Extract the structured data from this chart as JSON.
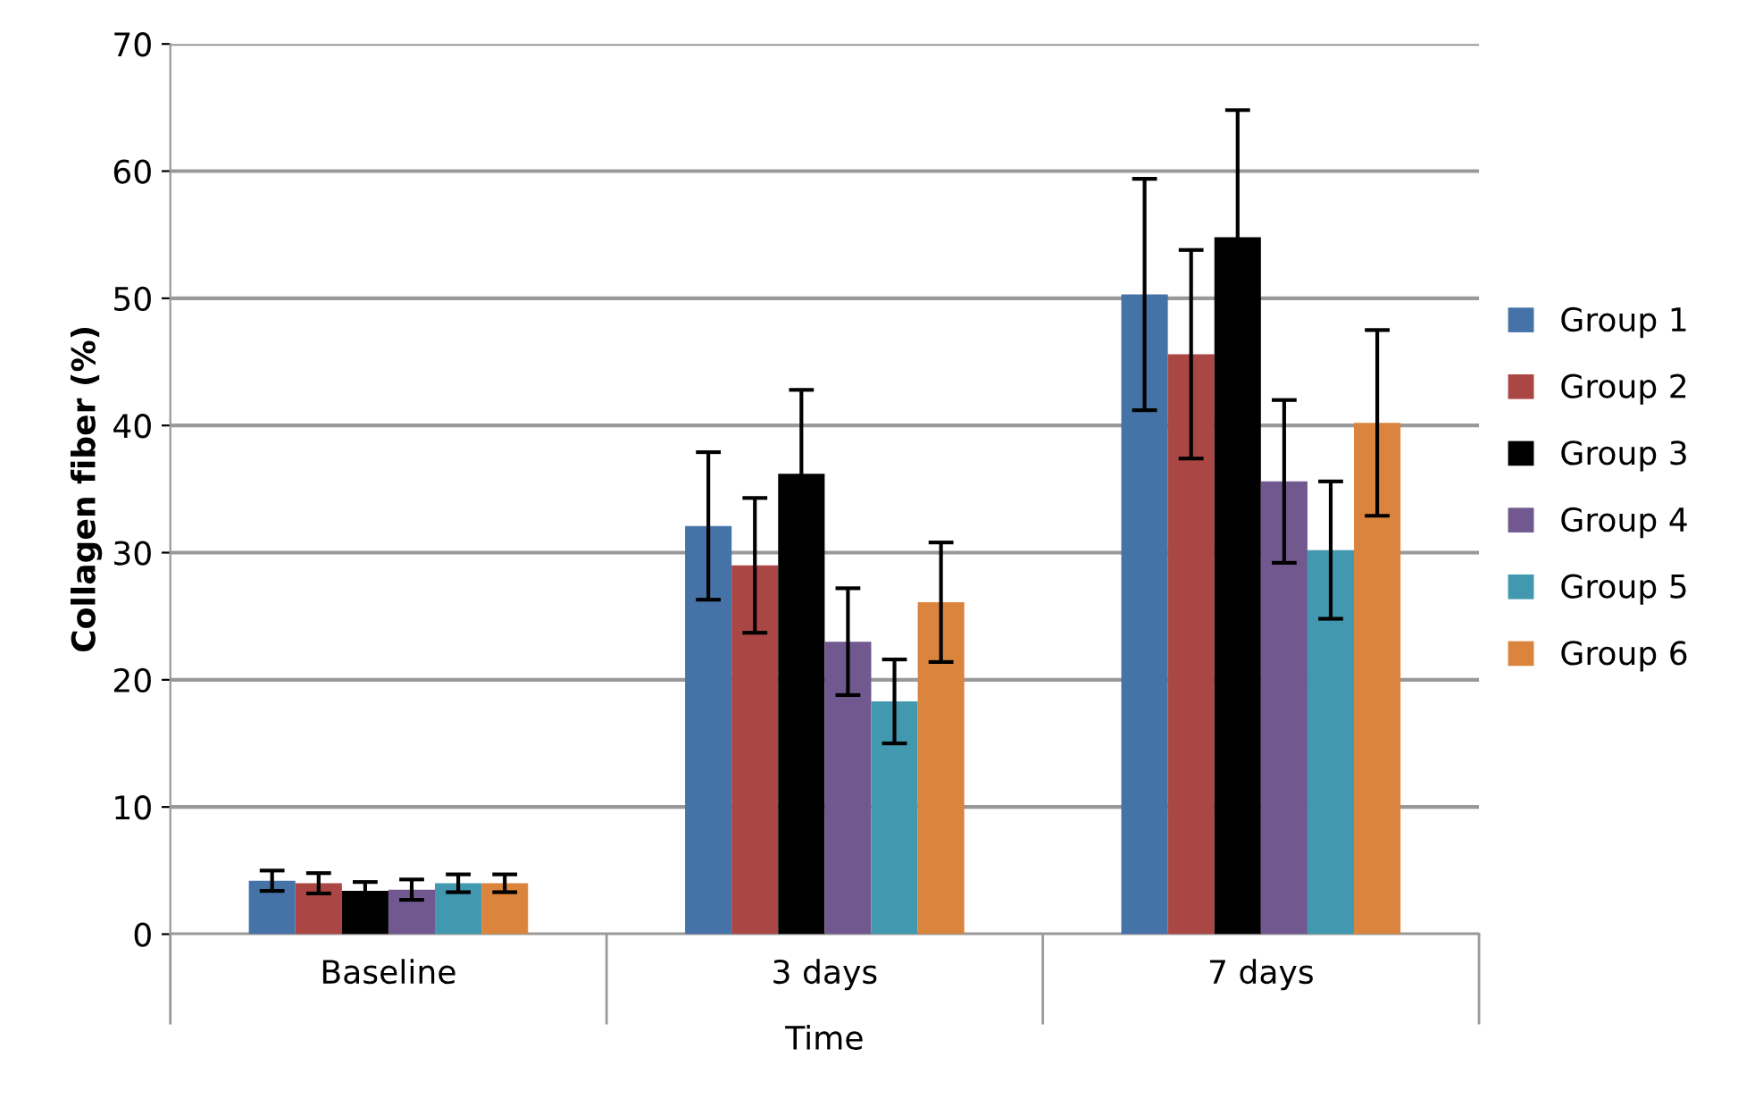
{
  "chart_data": {
    "type": "bar",
    "xlabel": "Time",
    "ylabel": "Collagen fiber (%)",
    "categories": [
      "Baseline",
      "3 days",
      "7 days"
    ],
    "series": [
      {
        "name": "Group 1",
        "color": "#4572a7",
        "values": [
          4.2,
          32.1,
          50.3
        ],
        "errors": [
          0.8,
          5.8,
          9.1
        ]
      },
      {
        "name": "Group 2",
        "color": "#aa4643",
        "values": [
          4.0,
          29.0,
          45.6
        ],
        "errors": [
          0.8,
          5.3,
          8.2
        ]
      },
      {
        "name": "Group 3",
        "color": "#000000",
        "values": [
          3.4,
          36.2,
          54.8
        ],
        "errors": [
          0.7,
          6.6,
          10.0
        ]
      },
      {
        "name": "Group 4",
        "color": "#71588f",
        "values": [
          3.5,
          23.0,
          35.6
        ],
        "errors": [
          0.8,
          4.2,
          6.4
        ]
      },
      {
        "name": "Group 5",
        "color": "#4198af",
        "values": [
          4.0,
          18.3,
          30.2
        ],
        "errors": [
          0.7,
          3.3,
          5.4
        ]
      },
      {
        "name": "Group 6",
        "color": "#db843d",
        "values": [
          4.0,
          26.1,
          40.2
        ],
        "errors": [
          0.7,
          4.7,
          7.3
        ]
      }
    ],
    "ylim": [
      0,
      70
    ],
    "yticks": [
      0,
      10,
      20,
      30,
      40,
      50,
      60,
      70
    ],
    "grid": "y",
    "legend": "right"
  }
}
